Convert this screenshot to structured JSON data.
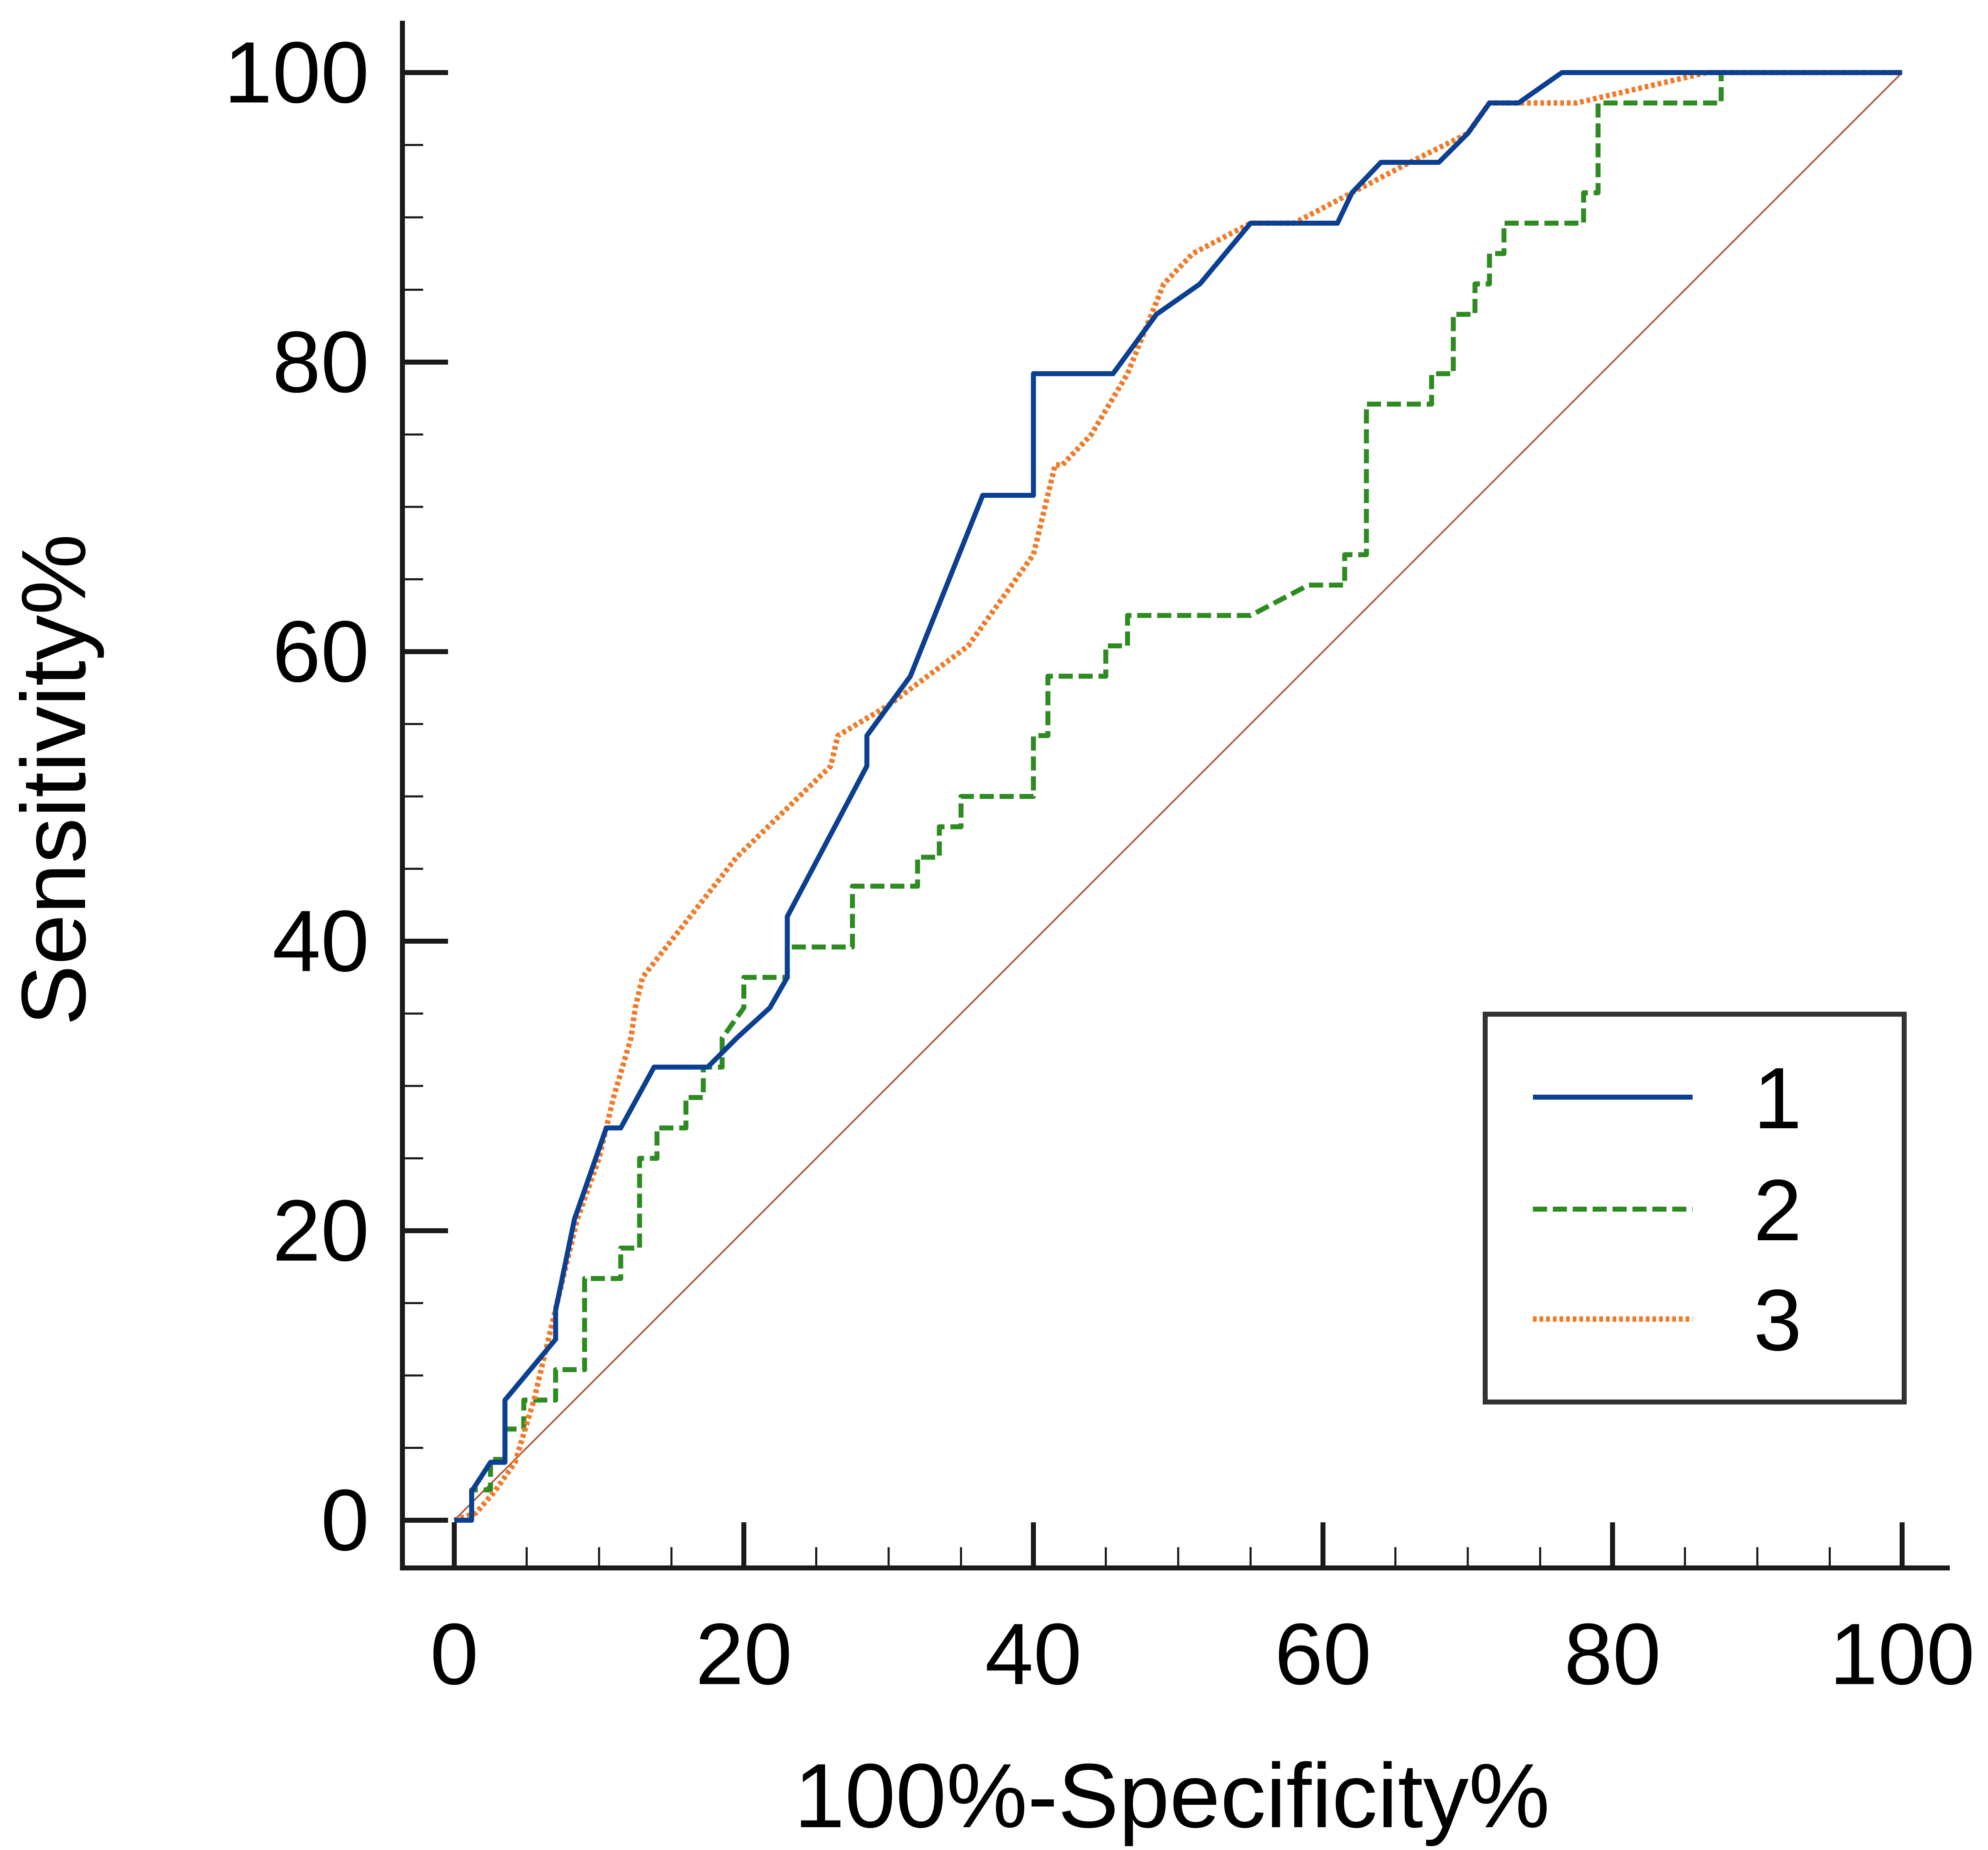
{
  "chart_data": {
    "type": "line",
    "title": "",
    "xlabel": "100%-Specificity%",
    "ylabel": "Sensitivity%",
    "xlim": [
      0,
      100
    ],
    "ylim": [
      0,
      100
    ],
    "x_ticks": [
      "0",
      "20",
      "40",
      "60",
      "80",
      "100"
    ],
    "y_ticks": [
      "0",
      "20",
      "40",
      "60",
      "80",
      "100"
    ],
    "x_tick_values": [
      0,
      20,
      40,
      60,
      80,
      100
    ],
    "y_tick_values": [
      0,
      20,
      40,
      60,
      80,
      100
    ],
    "x_minor_step": 5,
    "y_minor_step": 5,
    "grid": false,
    "legend_position": "lower-right",
    "reference_line": {
      "x": [
        0,
        100
      ],
      "y": [
        0,
        100
      ],
      "color": "#b05a3c"
    },
    "series": [
      {
        "name": "1",
        "color": "#0b3f91",
        "style": "solid",
        "x": [
          0,
          1.2,
          1.2,
          2.5,
          3.5,
          3.5,
          7,
          7,
          8.3,
          10.5,
          11.5,
          13.8,
          17.5,
          19.5,
          21.8,
          23,
          23,
          28.5,
          28.5,
          31.5,
          36.5,
          40,
          40,
          45.5,
          48.5,
          51.5,
          55,
          58.5,
          61,
          62,
          64,
          68,
          70,
          71.5,
          73.5,
          76.5,
          100
        ],
        "y": [
          0,
          0,
          2,
          4,
          4,
          8.3,
          12.5,
          14.5,
          20.8,
          27.1,
          27.1,
          31.3,
          31.3,
          33.3,
          35.4,
          37.5,
          41.7,
          52.1,
          54.2,
          58.3,
          70.8,
          70.8,
          79.2,
          79.2,
          83.3,
          85.4,
          89.6,
          89.6,
          89.6,
          91.7,
          93.8,
          93.8,
          95.8,
          97.9,
          97.9,
          100,
          100
        ]
      },
      {
        "name": "2",
        "color": "#2e8b22",
        "style": "dashed",
        "x": [
          0,
          1.2,
          1.2,
          2.5,
          2.5,
          3.5,
          3.5,
          4.8,
          4.8,
          6.5,
          6.5,
          7,
          7,
          9,
          9,
          11.5,
          11.5,
          12.8,
          12.8,
          14,
          14,
          16,
          16,
          17.2,
          17.2,
          18.5,
          18.5,
          20,
          20,
          23,
          23,
          27.5,
          27.5,
          32,
          32,
          33.5,
          33.5,
          35,
          35,
          40,
          40,
          41,
          41,
          45,
          45,
          46.5,
          46.5,
          55,
          59,
          61.5,
          61.5,
          63,
          63,
          67.5,
          67.5,
          69,
          69,
          70.5,
          70.5,
          71.5,
          71.5,
          72.5,
          72.5,
          78,
          78,
          79,
          79,
          87.5,
          87.5,
          100
        ],
        "y": [
          0,
          0,
          2.1,
          2.1,
          4.2,
          4.2,
          6.3,
          6.3,
          8.3,
          8.3,
          8.3,
          8.3,
          10.4,
          10.4,
          16.7,
          16.7,
          18.8,
          18.8,
          25,
          25,
          27.1,
          27.1,
          29.2,
          29.2,
          31.3,
          31.3,
          33.3,
          35.4,
          37.5,
          37.5,
          39.6,
          39.6,
          43.8,
          43.8,
          45.8,
          45.8,
          47.9,
          47.9,
          50,
          50,
          54.2,
          54.2,
          58.3,
          58.3,
          60.4,
          60.4,
          62.5,
          62.5,
          64.6,
          64.6,
          66.7,
          66.7,
          77.1,
          77.1,
          79.2,
          79.2,
          83.3,
          83.3,
          85.4,
          85.4,
          87.5,
          87.5,
          89.6,
          89.6,
          91.7,
          91.7,
          97.9,
          97.9,
          100,
          100
        ]
      },
      {
        "name": "3",
        "color": "#f07a28",
        "style": "dotted",
        "x": [
          0,
          1.5,
          2.8,
          4.2,
          5.5,
          7,
          8.5,
          10,
          11,
          12.2,
          12.5,
          13,
          19.5,
          26,
          26.5,
          30,
          35.5,
          40,
          41.5,
          42,
          44,
          46.5,
          49,
          51,
          55,
          58,
          62,
          66,
          70,
          71.5,
          77.5,
          86.5,
          100
        ],
        "y": [
          0,
          0.5,
          2,
          4,
          8.3,
          14.6,
          20.8,
          25,
          29.2,
          33.3,
          35.4,
          37.5,
          45.8,
          52.1,
          54.2,
          56.3,
          60.4,
          66.7,
          72.9,
          72.9,
          75,
          79.2,
          85.4,
          87.5,
          89.6,
          89.6,
          91.7,
          93.8,
          95.8,
          97.9,
          97.9,
          100,
          100
        ]
      }
    ]
  }
}
